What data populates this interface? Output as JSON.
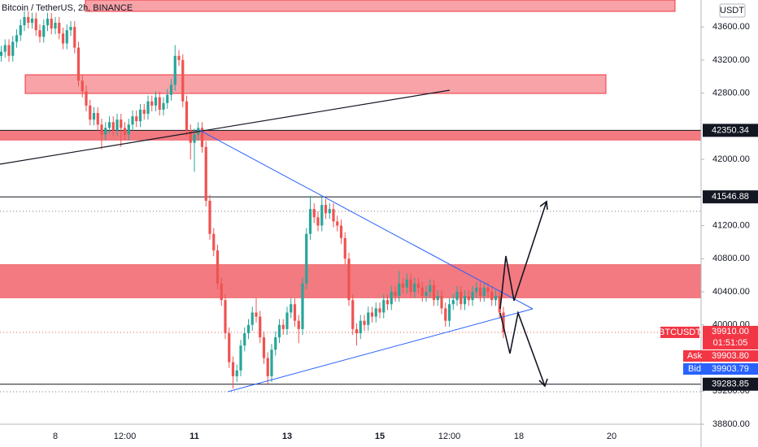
{
  "chart_data": {
    "type": "candlestick",
    "title": "Bitcoin / TetherUS, 2h, BINANCE",
    "currency": "USDT",
    "up_color": "#26a69a",
    "down_color": "#ef5350",
    "grid": false,
    "ylim": [
      38800,
      43925
    ],
    "yticks": [
      {
        "value": 43600,
        "label": "43600.00"
      },
      {
        "value": 43200,
        "label": "43200.00"
      },
      {
        "value": 42800,
        "label": "42800.00"
      },
      {
        "value": 42000,
        "label": "42000.00"
      },
      {
        "value": 41200,
        "label": "41200.00"
      },
      {
        "value": 40800,
        "label": "40800.00"
      },
      {
        "value": 40400,
        "label": "40400.00"
      },
      {
        "value": 40000,
        "label": "40000.00"
      },
      {
        "value": 39200,
        "label": "39200.00"
      },
      {
        "value": 38800,
        "label": "38800.00"
      }
    ],
    "categories": [
      null,
      null,
      null,
      null,
      null,
      null,
      null,
      null,
      null,
      null,
      null,
      null,
      null,
      null,
      "8",
      null,
      null,
      null,
      null,
      null,
      null,
      null,
      null,
      null,
      null,
      null,
      null,
      null,
      null,
      null,
      null,
      null,
      "12:00",
      null,
      null,
      null,
      null,
      null,
      null,
      null,
      null,
      null,
      null,
      null,
      null,
      null,
      null,
      null,
      null,
      null,
      "11",
      null,
      null,
      null,
      null,
      null,
      null,
      null,
      null,
      null,
      null,
      null,
      null,
      null,
      null,
      null,
      null,
      null,
      null,
      null,
      null,
      null,
      null,
      null,
      "13",
      null,
      null,
      null,
      null,
      null,
      null,
      null,
      null,
      null,
      null,
      null,
      null,
      null,
      null,
      null,
      null,
      null,
      null,
      null,
      null,
      null,
      null,
      null,
      "15",
      null,
      null,
      null,
      null,
      null,
      null,
      null,
      null,
      null,
      null,
      null,
      null,
      null,
      null,
      null,
      null,
      null,
      "12:00",
      null,
      null,
      null,
      null,
      null,
      null,
      null,
      null,
      null,
      null,
      null,
      null,
      null,
      null,
      null,
      null,
      null,
      "18",
      null,
      null,
      null,
      null,
      null,
      null,
      null,
      null,
      null,
      null,
      null,
      null,
      null,
      null,
      null,
      null,
      null,
      null,
      null,
      null,
      null,
      null,
      null,
      "20"
    ],
    "open": [
      43250,
      43300,
      43380,
      43250,
      43420,
      43500,
      43620,
      43720,
      43650,
      43700,
      43560,
      43480,
      43620,
      43700,
      43580,
      43650,
      43520,
      43400,
      43560,
      43600,
      43350,
      42950,
      42820,
      42650,
      42480,
      42560,
      42420,
      42300,
      42380,
      42450,
      42350,
      42480,
      42380,
      42300,
      42420,
      42520,
      42460,
      42600,
      42550,
      42700,
      42650,
      42750,
      42600,
      42680,
      42780,
      42900,
      43250,
      43200,
      42700,
      42350,
      42200,
      42300,
      42380,
      42150,
      41500,
      41100,
      40900,
      40500,
      40300,
      39900,
      39550,
      39380,
      39450,
      39750,
      39900,
      40000,
      40150,
      40100,
      39850,
      39600,
      39380,
      39700,
      39850,
      40000,
      39950,
      40150,
      40250,
      40050,
      39950,
      40500,
      41100,
      41400,
      41300,
      41200,
      41450,
      41350,
      41400,
      41250,
      41200,
      41050,
      40800,
      40300,
      39950,
      39900,
      40050,
      40000,
      40150,
      40100,
      40200,
      40150,
      40300,
      40250,
      40400,
      40350,
      40500,
      40450,
      40550,
      40400,
      40500,
      40450,
      40350,
      40400,
      40480,
      40300,
      40350,
      40200,
      40050,
      40250,
      40300,
      40400,
      40250,
      40350,
      40300,
      40400,
      40450,
      40350,
      40450,
      40400,
      40300,
      40350,
      40150,
      null,
      null,
      null,
      null,
      null,
      null,
      null,
      null,
      null,
      null,
      null,
      null,
      null,
      null,
      null,
      null,
      null,
      null,
      null,
      null,
      null,
      null,
      null,
      null,
      null,
      null,
      null,
      null
    ],
    "high": [
      43370,
      43450,
      43450,
      43490,
      43570,
      43690,
      43790,
      43790,
      43770,
      43770,
      43630,
      43690,
      43770,
      43770,
      43720,
      43720,
      43590,
      43630,
      43670,
      43670,
      43420,
      43020,
      42890,
      42720,
      42630,
      42630,
      42490,
      42450,
      42520,
      42520,
      42550,
      42550,
      42450,
      42490,
      42590,
      42590,
      42670,
      42670,
      42770,
      42770,
      42820,
      42820,
      42750,
      42850,
      42970,
      43380,
      43320,
      43270,
      42770,
      42420,
      42370,
      42450,
      42450,
      42220,
      41570,
      41170,
      40970,
      40570,
      40370,
      39970,
      39620,
      39520,
      39820,
      39970,
      40070,
      40220,
      40320,
      40170,
      39920,
      39670,
      39770,
      39920,
      40070,
      40070,
      40220,
      40320,
      40320,
      40120,
      40570,
      41170,
      41560,
      41470,
      41370,
      41560,
      41520,
      41470,
      41470,
      41320,
      41270,
      41120,
      40870,
      40370,
      40020,
      40120,
      40120,
      40220,
      40220,
      40270,
      40270,
      40370,
      40370,
      40470,
      40470,
      40650,
      40570,
      40620,
      40620,
      40570,
      40570,
      40520,
      40470,
      40550,
      40550,
      40420,
      40420,
      40270,
      40320,
      40370,
      40470,
      40470,
      40420,
      40420,
      40470,
      40520,
      40520,
      40520,
      40520,
      40470,
      40420,
      40420,
      40220,
      null,
      null,
      null,
      null,
      null,
      null,
      null,
      null,
      null,
      null,
      null,
      null,
      null,
      null,
      null,
      null,
      null,
      null,
      null,
      null,
      null,
      null,
      null,
      null,
      null,
      null,
      null,
      null
    ],
    "low": [
      43180,
      43230,
      43180,
      43180,
      43350,
      43430,
      43550,
      43580,
      43580,
      43490,
      43410,
      43410,
      43550,
      43510,
      43510,
      43450,
      43330,
      43330,
      43490,
      43280,
      42880,
      42750,
      42580,
      42410,
      42410,
      42350,
      42120,
      42230,
      42310,
      42280,
      42280,
      42150,
      42230,
      42230,
      42350,
      42390,
      42390,
      42480,
      42480,
      42580,
      42580,
      42530,
      42530,
      42610,
      42710,
      42830,
      43130,
      42630,
      42280,
      42000,
      41850,
      42230,
      42080,
      41430,
      41030,
      40830,
      40430,
      40230,
      39830,
      39480,
      39230,
      39310,
      39380,
      39680,
      39830,
      39930,
      40030,
      39780,
      39530,
      39290,
      39310,
      39630,
      39780,
      39880,
      39880,
      40080,
      39980,
      39780,
      39880,
      40430,
      41030,
      41230,
      41130,
      41130,
      41280,
      41280,
      41180,
      41130,
      40980,
      40730,
      40230,
      39880,
      39750,
      39830,
      39930,
      39930,
      40030,
      40030,
      40080,
      40080,
      40180,
      40180,
      40280,
      40280,
      40380,
      40380,
      40330,
      40330,
      40380,
      40280,
      40280,
      40330,
      40230,
      40230,
      40130,
      39980,
      39980,
      40180,
      40230,
      40180,
      40180,
      40230,
      40230,
      40330,
      40280,
      40280,
      40330,
      40230,
      40230,
      40080,
      39840,
      null,
      null,
      null,
      null,
      null,
      null,
      null,
      null,
      null,
      null,
      null,
      null,
      null,
      null,
      null,
      null,
      null,
      null,
      null,
      null,
      null,
      null,
      null,
      null,
      null,
      null,
      null,
      null
    ],
    "close": [
      43300,
      43380,
      43250,
      43420,
      43500,
      43620,
      43720,
      43650,
      43700,
      43560,
      43480,
      43620,
      43700,
      43580,
      43650,
      43520,
      43400,
      43560,
      43600,
      43350,
      42950,
      42820,
      42650,
      42480,
      42560,
      42420,
      42300,
      42380,
      42450,
      42350,
      42480,
      42380,
      42300,
      42420,
      42520,
      42460,
      42600,
      42550,
      42700,
      42650,
      42750,
      42600,
      42680,
      42780,
      42900,
      43250,
      43200,
      42700,
      42350,
      42200,
      42300,
      42380,
      42150,
      41500,
      41100,
      40900,
      40500,
      40300,
      39900,
      39550,
      39380,
      39450,
      39750,
      39900,
      40000,
      40150,
      40100,
      39850,
      39600,
      39380,
      39700,
      39850,
      40000,
      39950,
      40150,
      40250,
      40050,
      39950,
      40500,
      41100,
      41400,
      41300,
      41200,
      41450,
      41350,
      41400,
      41250,
      41200,
      41050,
      40800,
      40300,
      39950,
      39900,
      40050,
      40000,
      40150,
      40100,
      40200,
      40150,
      40300,
      40250,
      40400,
      40350,
      40500,
      40450,
      40550,
      40400,
      40500,
      40450,
      40350,
      40400,
      40480,
      40300,
      40350,
      40200,
      40050,
      40250,
      40300,
      40400,
      40250,
      40350,
      40300,
      40400,
      40450,
      40350,
      40450,
      40400,
      40300,
      40350,
      40150,
      39910,
      null,
      null,
      null,
      null,
      null,
      null,
      null,
      null,
      null,
      null,
      null,
      null,
      null,
      null,
      null,
      null,
      null,
      null,
      null,
      null,
      null,
      null,
      null,
      null,
      null,
      null,
      null,
      null
    ],
    "price_lines": [
      42350.34,
      41546.88,
      39283.85
    ],
    "last_price": {
      "symbol": "BTCUSDT",
      "value": {
        "value": 39910,
        "label": "39910.00"
      },
      "countdown": "01:51:05"
    },
    "ask": {
      "label": "Ask",
      "value": {
        "value": 39903.8,
        "label": "39903.80"
      }
    },
    "bid": {
      "label": "Bid",
      "value": 39903.79
    }
  }
}
